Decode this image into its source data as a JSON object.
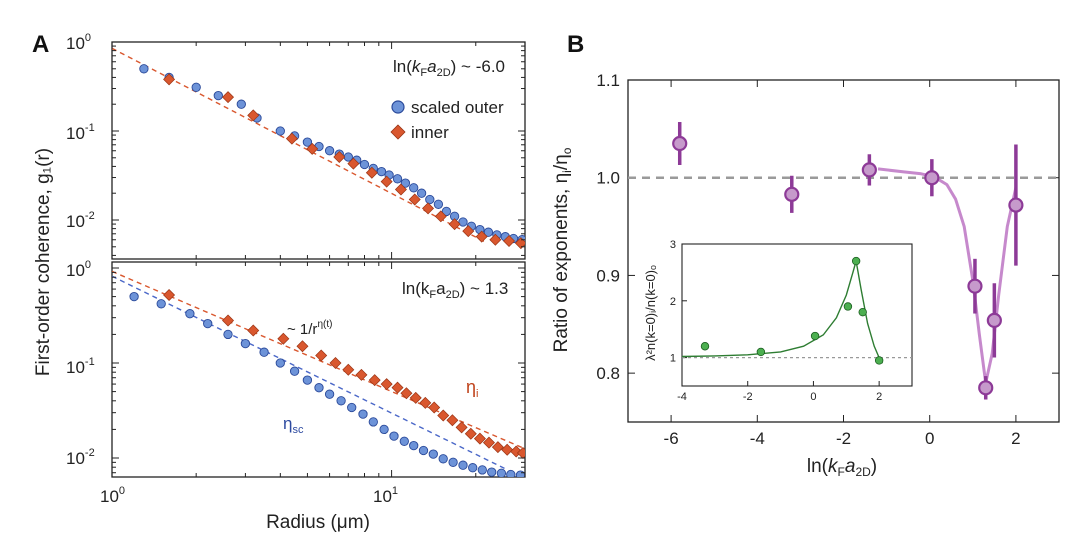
{
  "chart_data": [
    {
      "type": "scatter",
      "panel": "A-top",
      "panel_label": "A",
      "xscale": "log",
      "yscale": "log",
      "xlim": [
        1,
        30
      ],
      "ylim": [
        0.004,
        1
      ],
      "annotation": {
        "pre": "ln(",
        "k": "k",
        "F": "F",
        "a": "a",
        "sub2D": "2D",
        "post": ") ~ -6.0"
      },
      "legend": [
        {
          "label": "scaled outer",
          "marker": "circle",
          "color": "#6d93d8"
        },
        {
          "label": "inner",
          "marker": "diamond",
          "color": "#d9572e"
        }
      ],
      "series": [
        {
          "name": "scaled outer",
          "marker": "circle",
          "color": "#6d93d8",
          "x": [
            1.3,
            1.6,
            2.0,
            2.4,
            2.9,
            3.3,
            4.0,
            4.5,
            5.0,
            5.5,
            6.0,
            6.5,
            7.0,
            7.5,
            8.0,
            8.6,
            9.2,
            9.8,
            10.5,
            11.2,
            12.0,
            12.8,
            13.7,
            14.7,
            15.7,
            16.8,
            18.0,
            19.3,
            20.7,
            22.2,
            23.8,
            25.5,
            27.3,
            29.3
          ],
          "y": [
            0.5,
            0.4,
            0.31,
            0.25,
            0.2,
            0.14,
            0.1,
            0.088,
            0.075,
            0.067,
            0.06,
            0.055,
            0.051,
            0.047,
            0.042,
            0.038,
            0.035,
            0.032,
            0.029,
            0.026,
            0.023,
            0.02,
            0.017,
            0.015,
            0.0125,
            0.011,
            0.0095,
            0.0085,
            0.0078,
            0.0073,
            0.0068,
            0.0065,
            0.0062,
            0.006
          ]
        },
        {
          "name": "inner",
          "marker": "diamond",
          "color": "#d9572e",
          "x": [
            1.6,
            2.6,
            3.2,
            4.4,
            5.2,
            6.5,
            7.3,
            8.5,
            9.6,
            10.8,
            12.1,
            13.5,
            15.0,
            16.8,
            18.8,
            21.0,
            23.5,
            26.3,
            29.0
          ],
          "y": [
            0.38,
            0.24,
            0.15,
            0.082,
            0.063,
            0.051,
            0.043,
            0.034,
            0.027,
            0.022,
            0.017,
            0.0135,
            0.011,
            0.009,
            0.0075,
            0.0065,
            0.006,
            0.0058,
            0.0055
          ]
        },
        {
          "name": "fit",
          "line": "dashed",
          "color": "#d9572e",
          "x": [
            1,
            22
          ],
          "y": [
            0.85,
            0.0055
          ]
        }
      ]
    },
    {
      "type": "scatter",
      "panel": "A-bottom",
      "xscale": "log",
      "yscale": "log",
      "xlim": [
        1,
        30
      ],
      "ylim": [
        0.006,
        1
      ],
      "xlabel": "Radius (μm)",
      "ylabel": "First-order coherence, g₁(r)",
      "x_ticks": [
        {
          "base": "10",
          "exp": "0"
        },
        {
          "base": "10",
          "exp": "1"
        }
      ],
      "y_ticks": [
        {
          "base": "10",
          "exp": "0"
        },
        {
          "base": "10",
          "exp": "-1"
        },
        {
          "base": "10",
          "exp": "-2"
        }
      ],
      "annotation": {
        "pre": "ln(k",
        "F": "F",
        "mid": "a",
        "sub2D": "2D",
        "post": ") ~ 1.3"
      },
      "power_law_label": {
        "pre": "~ 1/r",
        "exp": "η(t)"
      },
      "eta_i": {
        "main": "η",
        "sub": "i"
      },
      "eta_sc": {
        "main": "η",
        "sub": "sc"
      },
      "series": [
        {
          "name": "inner",
          "marker": "diamond",
          "color": "#d9572e",
          "x": [
            1.6,
            2.6,
            3.2,
            4.1,
            4.8,
            5.6,
            6.3,
            7.0,
            7.8,
            8.7,
            9.6,
            10.5,
            11.3,
            12.2,
            13.2,
            14.2,
            15.3,
            16.5,
            17.8,
            19.2,
            20.7,
            22.3,
            24.0,
            25.9,
            27.9,
            29.5
          ],
          "y": [
            0.52,
            0.28,
            0.22,
            0.18,
            0.15,
            0.12,
            0.1,
            0.085,
            0.075,
            0.066,
            0.06,
            0.055,
            0.048,
            0.043,
            0.038,
            0.034,
            0.028,
            0.025,
            0.021,
            0.018,
            0.016,
            0.0145,
            0.013,
            0.0122,
            0.0117,
            0.0113
          ]
        },
        {
          "name": "scaled outer",
          "marker": "circle",
          "color": "#6d93d8",
          "x": [
            1.2,
            1.5,
            1.9,
            2.2,
            2.6,
            3.0,
            3.5,
            4.0,
            4.5,
            5.0,
            5.5,
            6.0,
            6.6,
            7.2,
            7.9,
            8.6,
            9.4,
            10.2,
            11.1,
            12.0,
            13.0,
            14.1,
            15.3,
            16.6,
            18.0,
            19.5,
            21.1,
            22.8,
            24.7,
            26.7,
            28.9
          ],
          "y": [
            0.5,
            0.42,
            0.33,
            0.26,
            0.2,
            0.16,
            0.13,
            0.1,
            0.082,
            0.066,
            0.055,
            0.047,
            0.04,
            0.034,
            0.029,
            0.024,
            0.02,
            0.017,
            0.015,
            0.0135,
            0.012,
            0.011,
            0.0098,
            0.009,
            0.0084,
            0.0079,
            0.0075,
            0.0071,
            0.0069,
            0.0067,
            0.0066
          ]
        },
        {
          "name": "fit-inner",
          "line": "dashed",
          "color": "#d9572e",
          "x": [
            1,
            30
          ],
          "y": [
            0.92,
            0.0125
          ]
        },
        {
          "name": "fit-outer",
          "line": "dashed",
          "color": "#4a67c8",
          "x": [
            1,
            26
          ],
          "y": [
            0.82,
            0.0075
          ]
        }
      ]
    },
    {
      "type": "scatter",
      "panel": "B",
      "panel_label": "B",
      "xlim": [
        -7,
        3
      ],
      "ylim": [
        0.75,
        1.1
      ],
      "x_ticks": [
        "-6",
        "-4",
        "-2",
        "0",
        "2"
      ],
      "y_ticks": [
        "0.8",
        "0.9",
        "1.0",
        "1.1"
      ],
      "xlabel": {
        "pre": "ln(",
        "k": "k",
        "F": "F",
        "a": "a",
        "sub2D": "2D",
        "post": ")"
      },
      "ylabel": {
        "pre": "Ratio of exponents,  η",
        "sub_i": "i",
        "mid": "/η",
        "sub_o": "o"
      },
      "reference_line": 1.0,
      "series": [
        {
          "name": "ratio",
          "marker": "circle",
          "color": "#8d3a97",
          "x": [
            -5.8,
            -3.2,
            -1.4,
            0.05,
            1.05,
            1.3,
            1.5,
            2.0
          ],
          "y": [
            1.035,
            0.983,
            1.008,
            1.0,
            0.889,
            0.785,
            0.854,
            0.972
          ],
          "err": [
            0.022,
            0.019,
            0.016,
            0.019,
            0.028,
            0.012,
            0.038,
            0.062
          ]
        },
        {
          "name": "fit",
          "line": "solid",
          "color": "#c689cc",
          "x": [
            -1.2,
            -0.6,
            -0.2,
            0.1,
            0.4,
            0.6,
            0.8,
            1.0,
            1.15,
            1.3,
            1.45,
            1.6,
            1.8,
            2.0
          ],
          "y": [
            1.009,
            1.006,
            1.004,
            1.001,
            0.993,
            0.978,
            0.95,
            0.895,
            0.84,
            0.79,
            0.82,
            0.88,
            0.95,
            0.99
          ]
        }
      ]
    },
    {
      "type": "scatter",
      "panel": "B-inset",
      "xlim": [
        -4,
        3
      ],
      "ylim": [
        0.5,
        3
      ],
      "x_ticks": [
        "-4",
        "-2",
        "0",
        "2"
      ],
      "y_ticks": [
        "1",
        "2",
        "3"
      ],
      "ylabel": "λ²n(k=0)ᵢ/n(k=0)ₒ",
      "reference_line": 1,
      "series": [
        {
          "name": "inset",
          "marker": "circle",
          "color": "#4caf50",
          "x": [
            -3.3,
            -1.6,
            0.05,
            1.05,
            1.3,
            1.5,
            2.0
          ],
          "y": [
            1.2,
            1.1,
            1.38,
            1.9,
            2.7,
            1.8,
            0.95
          ]
        },
        {
          "name": "inset-fit",
          "line": "solid",
          "color": "#2e7d32",
          "x": [
            -4,
            -3,
            -2,
            -1,
            -0.3,
            0.3,
            0.7,
            1.0,
            1.2,
            1.3,
            1.45,
            1.65,
            1.85,
            2.0,
            2.1
          ],
          "y": [
            1.02,
            1.03,
            1.05,
            1.1,
            1.2,
            1.4,
            1.7,
            2.1,
            2.5,
            2.7,
            2.2,
            1.6,
            1.2,
            1.0,
            0.9
          ]
        }
      ]
    }
  ]
}
